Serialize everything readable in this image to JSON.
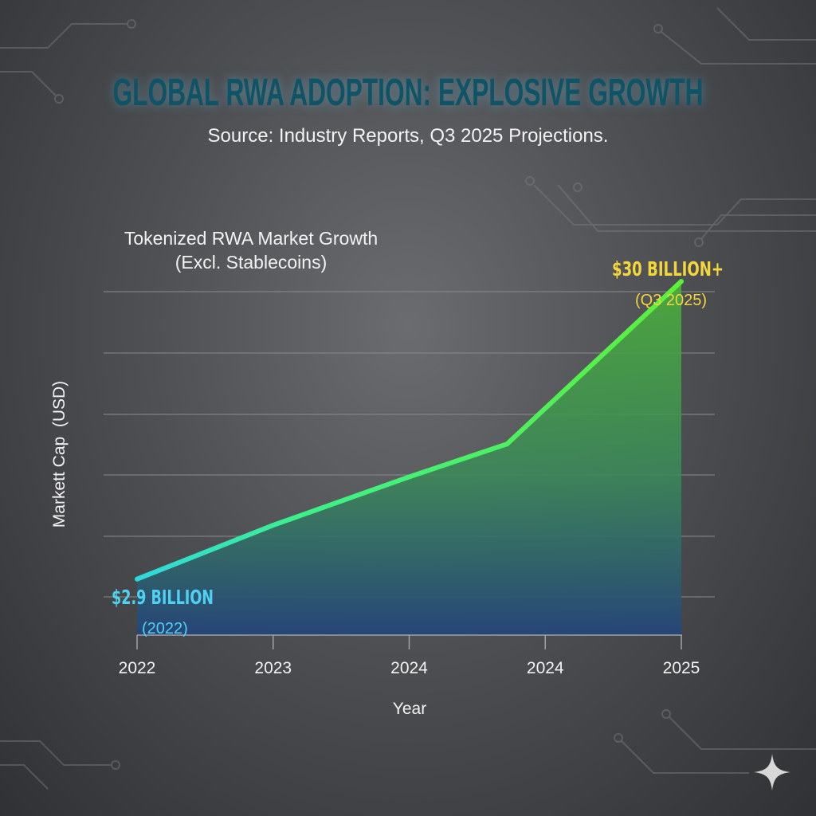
{
  "title": "GLOBAL RWA ADOPTION: EXPLOSIVE GROWTH",
  "subtitle": "Source: Industry Reports, Q3 2025 Projections.",
  "icons": [
    "sparkle-icon",
    "circuit-decoration"
  ],
  "colors": {
    "title": "#0e5366",
    "line_start": "#2fd8e0",
    "line_end": "#5cf03a",
    "start_label": "#4fd2f2",
    "end_label": "#f5d63a",
    "grid": "#8a8c8f"
  },
  "chart_data": {
    "type": "area",
    "title": "Tokenized RWA Market Growth",
    "title_line2": "(Excl. Stablecoins)",
    "xlabel": "Year",
    "ylabel": "Markett Cap  (USD)",
    "categories": [
      "2022",
      "2023",
      "2024",
      "2024",
      "2025"
    ],
    "points": [
      {
        "x": 0,
        "value": 2.9
      },
      {
        "x": 1,
        "value": 7.8
      },
      {
        "x": 2,
        "value": 12.2
      },
      {
        "x": 2.72,
        "value": 15.2
      },
      {
        "x": 4,
        "value": 30
      }
    ],
    "y_unit": "Billion USD",
    "ylim": [
      -2.2,
      33
    ],
    "grid": true,
    "y_tick_labels_shown": false,
    "annotations": [
      {
        "line1": "$2.9 BILLION",
        "line2": "(2022)"
      },
      {
        "line1": "$30 BILLION+",
        "line2": "(Q3 2025)"
      }
    ]
  }
}
